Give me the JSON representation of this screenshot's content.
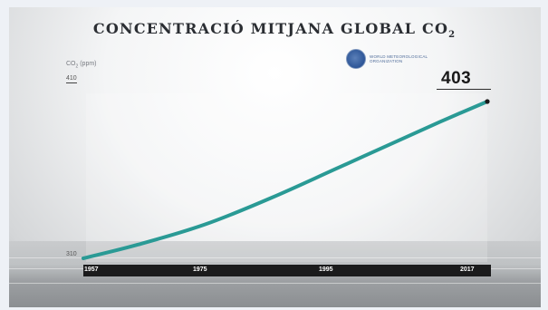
{
  "chart_data": {
    "type": "line",
    "title_main": "CONCENTRACIÓ MITJANA GLOBAL CO",
    "title_sub": "2",
    "ylabel_main": "CO",
    "ylabel_sub": "2",
    "ylabel_unit": " (ppm)",
    "ylim": [
      310,
      410
    ],
    "y_ticks": [
      "410",
      "310"
    ],
    "x_ticks": [
      "1957",
      "1975",
      "1995",
      "2017"
    ],
    "x_range": [
      1957,
      2017
    ],
    "series": [
      {
        "x": [
          1957,
          1965,
          1975,
          1985,
          1995,
          2005,
          2010,
          2017
        ],
        "values": [
          310,
          318,
          330,
          346,
          364,
          382,
          391,
          403
        ],
        "color": "#2a9a95"
      }
    ],
    "end_label": "403",
    "grid": false
  },
  "logo": {
    "text": "WORLD METEOROLOGICAL ORGANIZATION",
    "accent": "#2d5597"
  },
  "colors": {
    "line": "#2a9a95",
    "axis_bar": "#1b1b1c"
  }
}
